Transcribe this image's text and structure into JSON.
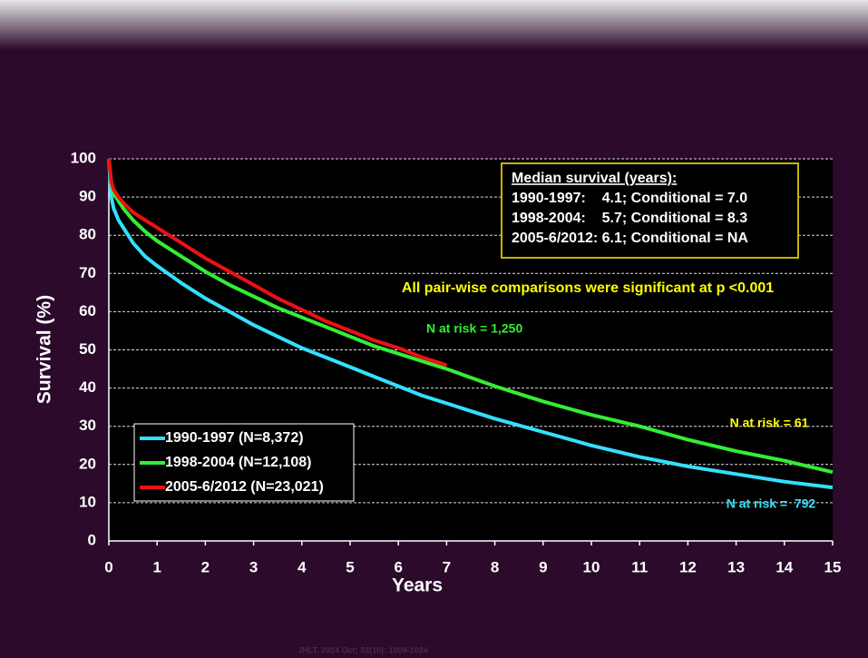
{
  "chart_data": {
    "type": "line",
    "xlabel": "Years",
    "ylabel": "Survival (%)",
    "x": [
      0,
      0.05,
      0.1,
      0.2,
      0.3,
      0.5,
      0.75,
      1,
      1.5,
      2,
      2.5,
      3,
      3.5,
      4,
      4.5,
      5,
      5.5,
      6,
      6.5,
      7,
      8,
      9,
      10,
      11,
      12,
      13,
      14,
      15
    ],
    "series": [
      {
        "name": "1990-1997 (N=8,372)",
        "color": "#33e0ff",
        "values": [
          100,
          90,
          87,
          84,
          82,
          78,
          74.5,
          72,
          67.5,
          63.5,
          60,
          56.5,
          53.5,
          50.5,
          48,
          45.5,
          43,
          40.5,
          38,
          36,
          32,
          28.5,
          25,
          22,
          19.5,
          17.5,
          15.5,
          14
        ]
      },
      {
        "name": "1998-2004 (N=12,108)",
        "color": "#33ee33",
        "values": [
          100,
          94,
          91,
          89,
          87,
          84,
          81,
          78.5,
          74.5,
          70.5,
          67,
          64,
          61,
          58.5,
          56,
          53.5,
          51,
          49,
          47,
          45,
          40.5,
          36.5,
          33,
          30,
          26.5,
          23.5,
          21,
          18
        ]
      },
      {
        "name": "2005-6/2012 (N=23,021)",
        "color": "#ee1111",
        "values": [
          100,
          94,
          92,
          90,
          88.5,
          86,
          84,
          82,
          78,
          74,
          70.5,
          67,
          63.5,
          60.5,
          57.5,
          55,
          52.5,
          50.5,
          48,
          46,
          null,
          null,
          null,
          null,
          null,
          null,
          null,
          null
        ]
      }
    ],
    "xlim": [
      0,
      15
    ],
    "xticks": [
      0,
      1,
      2,
      3,
      4,
      5,
      6,
      7,
      8,
      9,
      10,
      11,
      12,
      13,
      14,
      15
    ],
    "ylim": [
      0,
      100
    ],
    "yticks": [
      0,
      10,
      20,
      30,
      40,
      50,
      60,
      70,
      80,
      90,
      100
    ],
    "grid": true,
    "legend": "lower left",
    "median_box": {
      "title": "Median survival (years):",
      "lines": [
        "1990-1997:    4.1; Conditional = 7.0",
        "1998-2004:    5.7; Conditional = 8.3",
        "2005-6/2012: 6.1; Conditional = NA"
      ]
    },
    "annotations": [
      {
        "text": "All pair-wise comparisons were significant at p <0.001",
        "color": "#ffff00"
      },
      {
        "text": "N at risk = 1,250",
        "color": "#33ee33"
      },
      {
        "text": "N at risk = 61",
        "color": "#ffff00"
      },
      {
        "text": "N at risk =  792",
        "color": "#33e0ff"
      }
    ],
    "footnote": "JHLT. 2014 Oct; 33(10): 1009-1024"
  }
}
